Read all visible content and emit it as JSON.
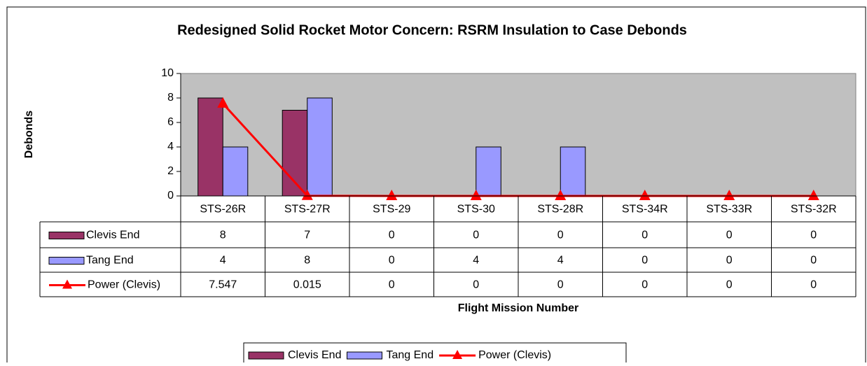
{
  "chart_data": {
    "type": "bar",
    "title": "Redesigned Solid Rocket Motor Concern:  RSRM Insulation to Case Debonds",
    "y_label": "Debonds",
    "x_label": "Flight Mission Number",
    "categories": [
      "STS-26R",
      "STS-27R",
      "STS-29",
      "STS-30",
      "STS-28R",
      "STS-34R",
      "STS-33R",
      "STS-32R"
    ],
    "series": [
      {
        "name": "Clevis End",
        "type": "bar",
        "color": "#993366",
        "values": [
          8,
          7,
          0,
          0,
          0,
          0,
          0,
          0
        ]
      },
      {
        "name": "Tang End",
        "type": "bar",
        "color": "#9999ff",
        "values": [
          4,
          8,
          0,
          4,
          4,
          0,
          0,
          0
        ]
      },
      {
        "name": "Power (Clevis)",
        "type": "line",
        "color": "#ff0000",
        "values": [
          7.547,
          0.015,
          0,
          0,
          0,
          0,
          0,
          0
        ]
      }
    ],
    "ylim": [
      0,
      10
    ],
    "yticks": [
      0,
      2,
      4,
      6,
      8,
      10
    ],
    "data_table": true,
    "legend": "bottom"
  }
}
